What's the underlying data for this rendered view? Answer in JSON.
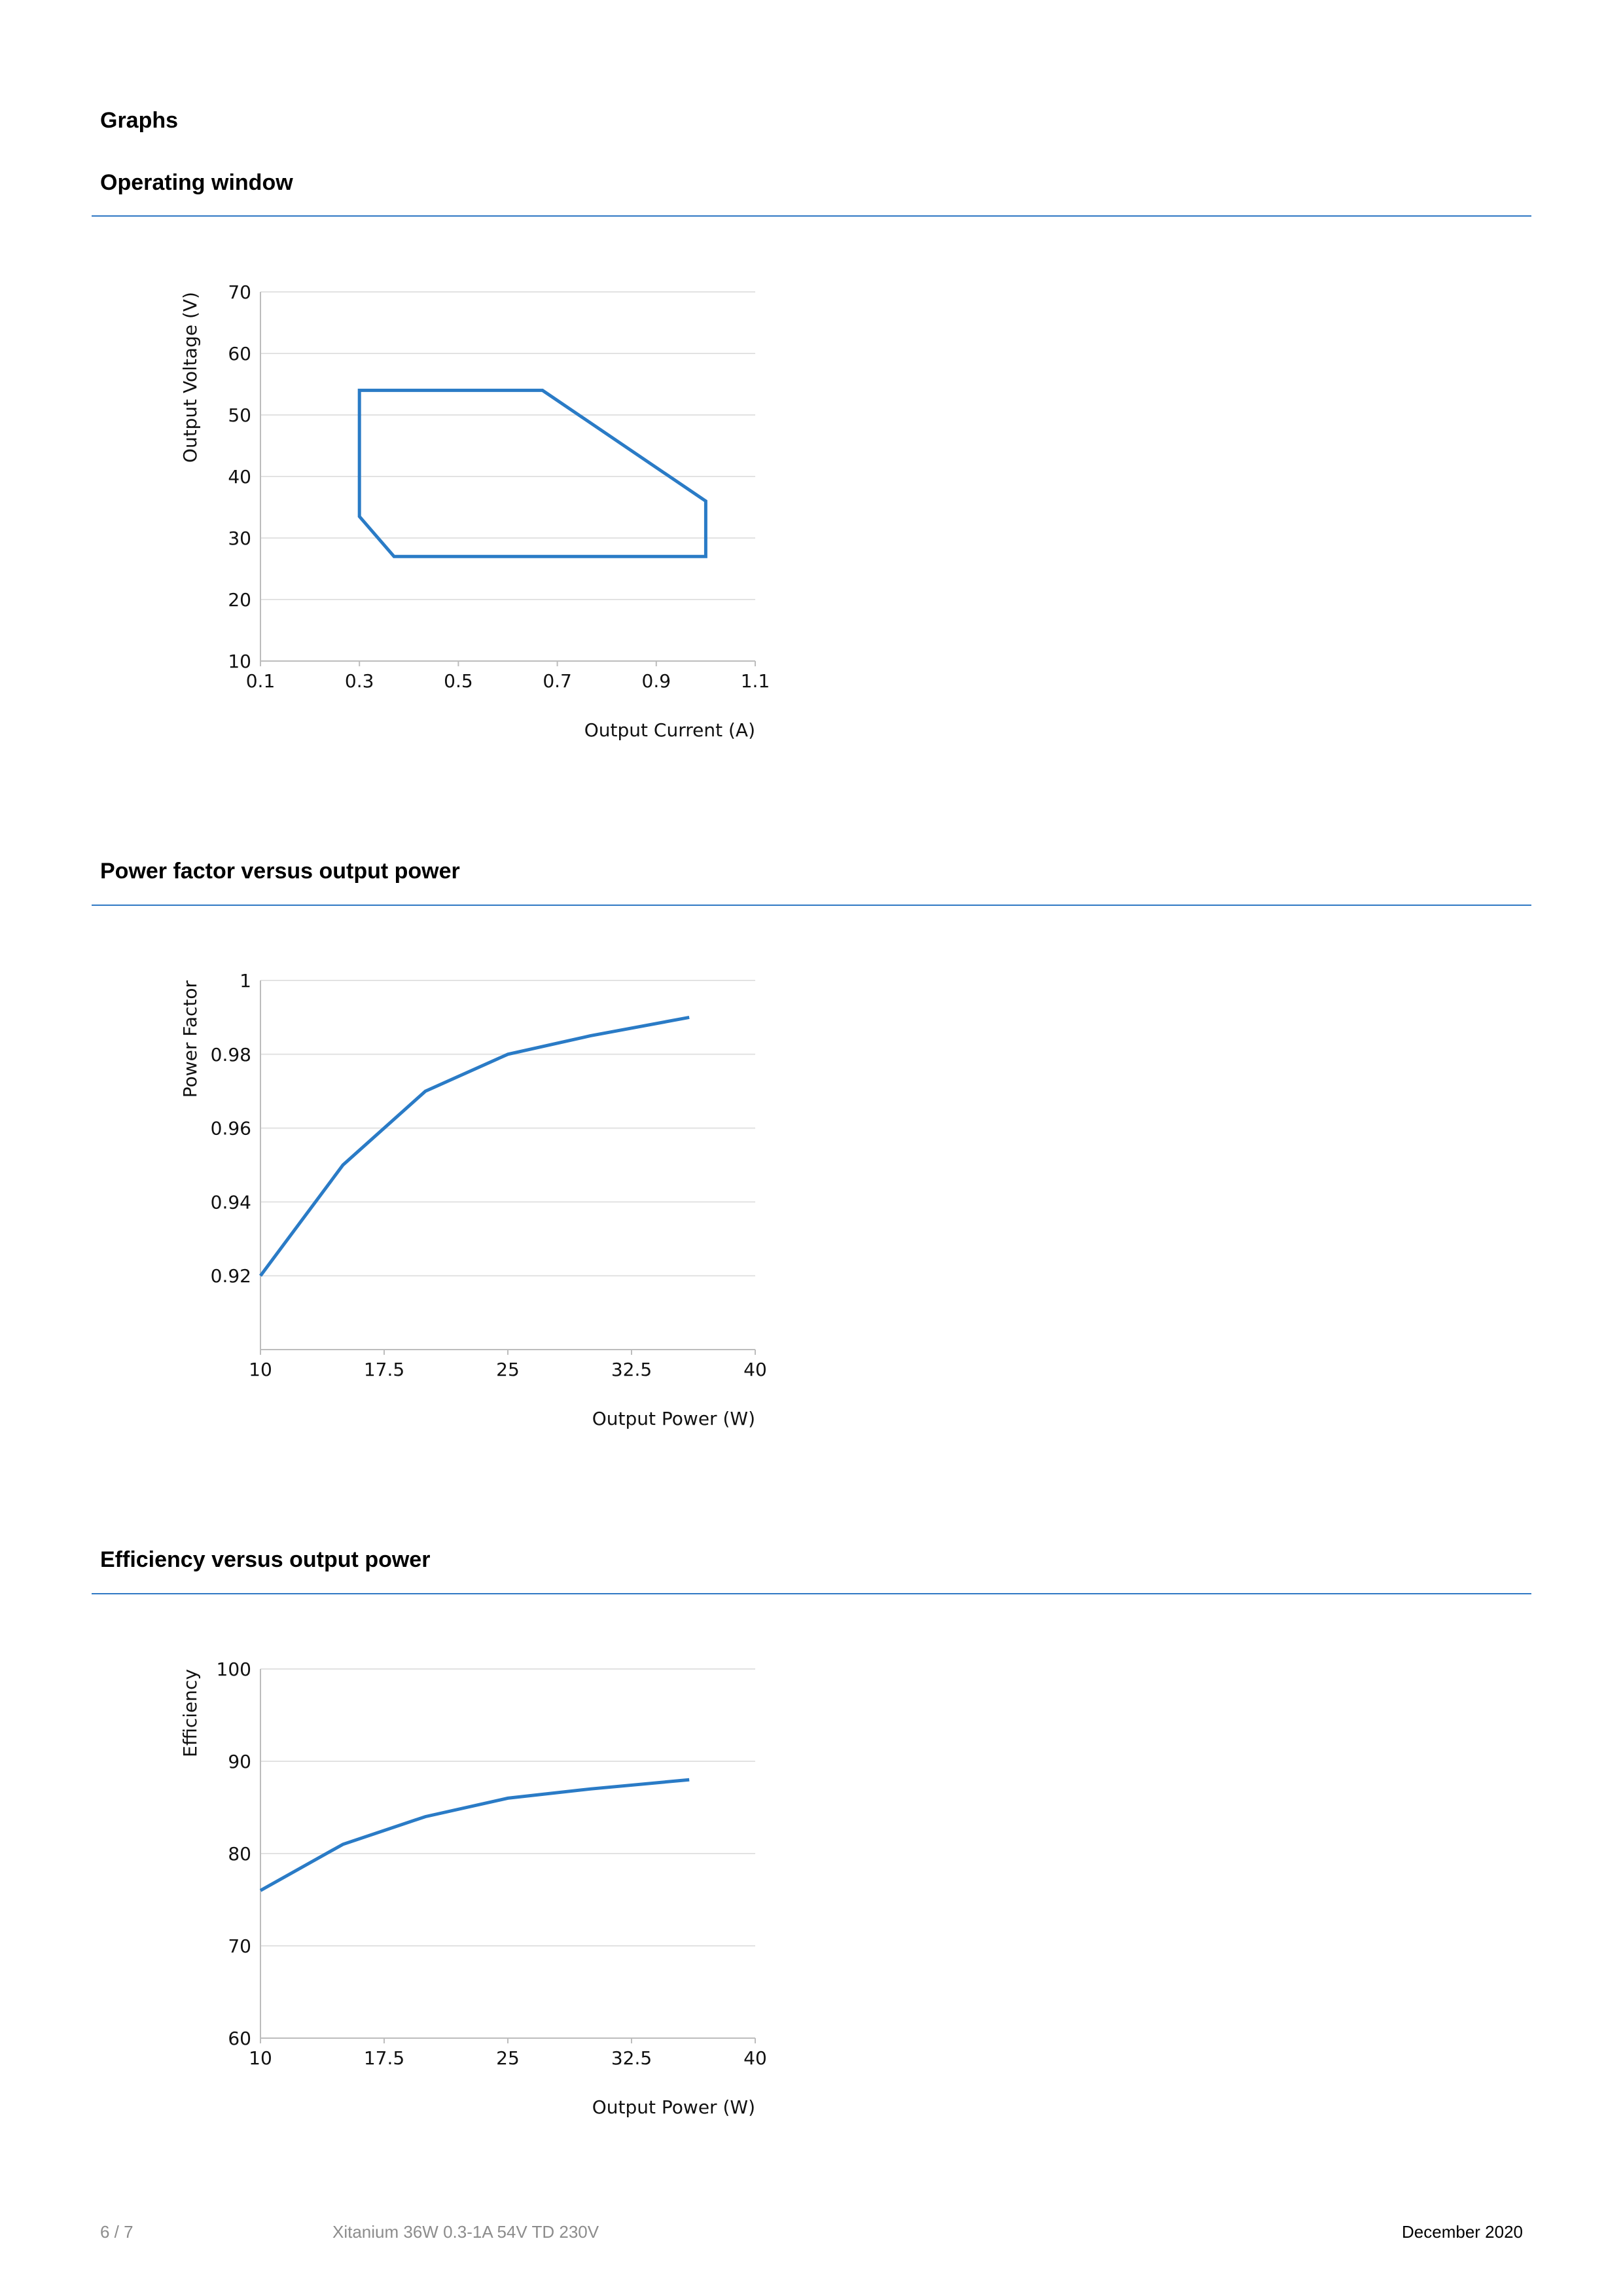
{
  "page": {
    "heading": "Graphs"
  },
  "colors": {
    "accent": "#2f78c4",
    "line": "#2a7bc6",
    "grid": "#e2e2e2",
    "axis": "#bdbdbd",
    "footer_muted": "#8c8c8c"
  },
  "sections": [
    {
      "title": "Operating window"
    },
    {
      "title": "Power factor versus output power"
    },
    {
      "title": "Efficiency versus output power"
    }
  ],
  "chart_data": [
    {
      "type": "line",
      "title": "Operating window",
      "xlabel": "Output Current (A)",
      "ylabel": "Output Voltage (V)",
      "xlim": [
        0.1,
        1.1
      ],
      "ylim": [
        10,
        70
      ],
      "xticks": [
        0.1,
        0.3,
        0.5,
        0.7,
        0.9,
        1.1
      ],
      "xtick_labels": [
        "0.1",
        "0.3",
        "0.5",
        "0.7",
        "0.9",
        "1.1"
      ],
      "yticks": [
        10,
        20,
        30,
        40,
        50,
        60,
        70
      ],
      "ytick_labels": [
        "10",
        "20",
        "30",
        "40",
        "50",
        "60",
        "70"
      ],
      "grid": true,
      "closed": true,
      "series": [
        {
          "x": [
            0.3,
            0.67,
            1.0,
            1.0,
            0.37,
            0.3,
            0.3
          ],
          "y": [
            54,
            54,
            36,
            27,
            27,
            33.5,
            54
          ]
        }
      ]
    },
    {
      "type": "line",
      "title": "Power factor versus output power",
      "xlabel": "Output Power (W)",
      "ylabel": "Power Factor",
      "xlim": [
        10,
        40
      ],
      "ylim": [
        0.9,
        1.0
      ],
      "xticks": [
        10,
        17.5,
        25,
        32.5,
        40
      ],
      "xtick_labels": [
        "10",
        "17.5",
        "25",
        "32.5",
        "40"
      ],
      "yticks": [
        0.92,
        0.94,
        0.96,
        0.98,
        1.0
      ],
      "ytick_labels": [
        "0.92",
        "0.94",
        "0.96",
        "0.98",
        "1"
      ],
      "grid": true,
      "closed": false,
      "series": [
        {
          "x": [
            10,
            15,
            20,
            25,
            30,
            36
          ],
          "y": [
            0.92,
            0.95,
            0.97,
            0.98,
            0.985,
            0.99
          ]
        }
      ]
    },
    {
      "type": "line",
      "title": "Efficiency versus output power",
      "xlabel": "Output Power (W)",
      "ylabel": "Efficiency",
      "xlim": [
        10,
        40
      ],
      "ylim": [
        60,
        100
      ],
      "xticks": [
        10,
        17.5,
        25,
        32.5,
        40
      ],
      "xtick_labels": [
        "10",
        "17.5",
        "25",
        "32.5",
        "40"
      ],
      "yticks": [
        60,
        70,
        80,
        90,
        100
      ],
      "ytick_labels": [
        "60",
        "70",
        "80",
        "90",
        "100"
      ],
      "grid": true,
      "closed": false,
      "series": [
        {
          "x": [
            10,
            15,
            20,
            25,
            30,
            36
          ],
          "y": [
            76,
            81,
            84,
            86,
            87,
            88
          ]
        }
      ]
    }
  ],
  "footer": {
    "page_number": "6 / 7",
    "product": "Xitanium 36W 0.3-1A 54V TD 230V",
    "date": "December 2020"
  }
}
